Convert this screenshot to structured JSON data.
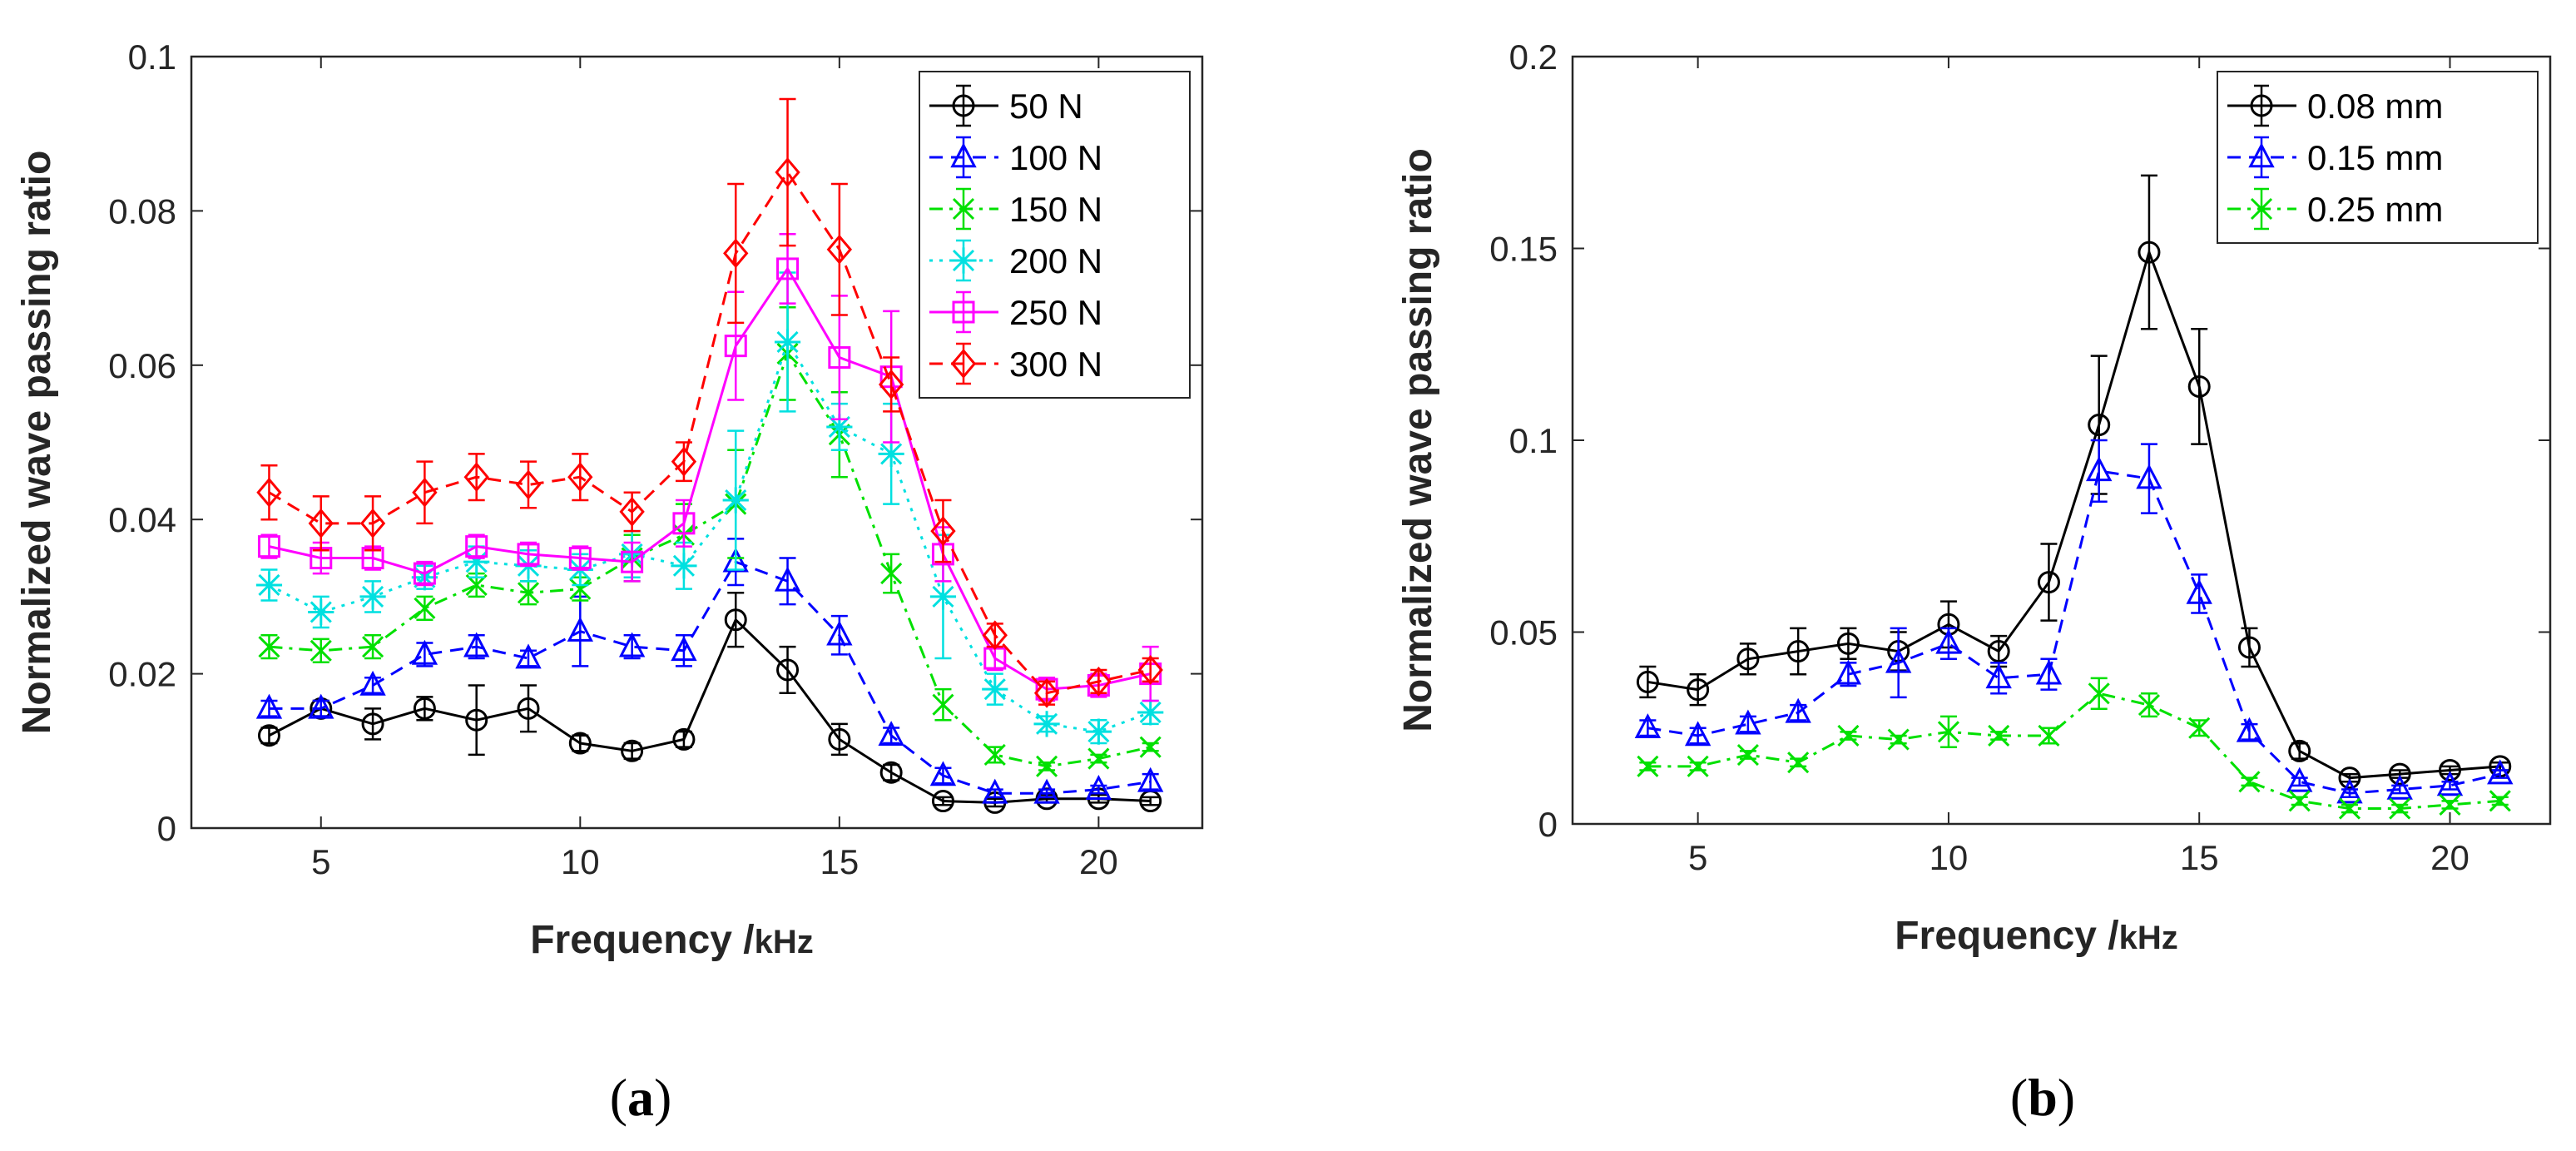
{
  "chart_data": [
    {
      "type": "line",
      "panel_label": "a",
      "xlabel": "Frequency /",
      "xlabel_unit": "kHz",
      "ylabel": "Normalized wave passing ratio",
      "xlim": [
        2.5,
        22
      ],
      "ylim": [
        0,
        0.1
      ],
      "xticks": [
        5,
        10,
        15,
        20
      ],
      "yticks": [
        0,
        0.02,
        0.04,
        0.06,
        0.08,
        0.1
      ],
      "ytick_labels": [
        "0",
        "0.02",
        "0.04",
        "0.06",
        "0.08",
        "0.1"
      ],
      "grid": false,
      "legend_position": "top-right",
      "x": [
        4,
        5,
        6,
        7,
        8,
        9,
        10,
        11,
        12,
        13,
        14,
        15,
        16,
        17,
        18,
        19,
        20,
        21
      ],
      "series": [
        {
          "name": "50 N",
          "color": "#000000",
          "marker": "circle",
          "dash": "solid",
          "values": [
            0.012,
            0.0155,
            0.0135,
            0.0155,
            0.014,
            0.0155,
            0.011,
            0.01,
            0.0115,
            0.027,
            0.0205,
            0.0115,
            0.0072,
            0.0035,
            0.0033,
            0.0038,
            0.0038,
            0.0035
          ],
          "errors": [
            0.001,
            0.001,
            0.002,
            0.0015,
            0.0045,
            0.003,
            0.001,
            0.001,
            0.001,
            0.0035,
            0.003,
            0.002,
            0.001,
            0.0005,
            0.0005,
            0.0005,
            0.0005,
            0.0005
          ]
        },
        {
          "name": "100 N",
          "color": "#0000ff",
          "marker": "triangle",
          "dash": "dashed",
          "values": [
            0.0155,
            0.0155,
            0.0185,
            0.0225,
            0.0235,
            0.022,
            0.0255,
            0.0235,
            0.023,
            0.0345,
            0.032,
            0.025,
            0.012,
            0.0068,
            0.0045,
            0.0045,
            0.005,
            0.006
          ],
          "errors": [
            0.001,
            0.001,
            0.001,
            0.0015,
            0.0015,
            0.001,
            0.0045,
            0.0015,
            0.002,
            0.003,
            0.003,
            0.0025,
            0.001,
            0.001,
            0.0005,
            0.0005,
            0.0005,
            0.001
          ]
        },
        {
          "name": "150 N",
          "color": "#00e000",
          "marker": "x",
          "dash": "dashdot",
          "values": [
            0.0235,
            0.023,
            0.0235,
            0.0285,
            0.0315,
            0.0305,
            0.031,
            0.035,
            0.038,
            0.042,
            0.0615,
            0.051,
            0.033,
            0.016,
            0.0095,
            0.008,
            0.009,
            0.0105
          ],
          "errors": [
            0.0015,
            0.0015,
            0.0015,
            0.0015,
            0.0015,
            0.0015,
            0.0015,
            0.003,
            0.004,
            0.007,
            0.006,
            0.0055,
            0.0025,
            0.002,
            0.001,
            0.0005,
            0.0005,
            0.0005
          ]
        },
        {
          "name": "200 N",
          "color": "#00e0e0",
          "marker": "star",
          "dash": "dotted",
          "values": [
            0.0315,
            0.028,
            0.03,
            0.0325,
            0.0345,
            0.034,
            0.0335,
            0.0355,
            0.034,
            0.0425,
            0.063,
            0.052,
            0.0485,
            0.03,
            0.018,
            0.0135,
            0.0125,
            0.015
          ],
          "errors": [
            0.002,
            0.002,
            0.002,
            0.0015,
            0.002,
            0.002,
            0.002,
            0.003,
            0.003,
            0.009,
            0.009,
            0.003,
            0.0065,
            0.008,
            0.002,
            0.001,
            0.0015,
            0.0015
          ]
        },
        {
          "name": "250 N",
          "color": "#ff00ff",
          "marker": "square",
          "dash": "solid",
          "values": [
            0.0365,
            0.035,
            0.035,
            0.033,
            0.0365,
            0.0355,
            0.035,
            0.0345,
            0.0395,
            0.0625,
            0.0725,
            0.061,
            0.0585,
            0.0355,
            0.022,
            0.018,
            0.0185,
            0.02
          ],
          "errors": [
            0.0015,
            0.002,
            0.0015,
            0.0015,
            0.0015,
            0.0015,
            0.0015,
            0.0025,
            0.003,
            0.007,
            0.0045,
            0.008,
            0.0085,
            0.0035,
            0.0015,
            0.0015,
            0.0015,
            0.0035
          ]
        },
        {
          "name": "300 N",
          "color": "#ff0000",
          "marker": "diamond",
          "dash": "dashed",
          "values": [
            0.0435,
            0.0395,
            0.0395,
            0.0435,
            0.0455,
            0.0445,
            0.0455,
            0.041,
            0.0475,
            0.0745,
            0.085,
            0.075,
            0.0575,
            0.0385,
            0.025,
            0.0175,
            0.019,
            0.0205
          ],
          "errors": [
            0.0035,
            0.0035,
            0.0035,
            0.004,
            0.003,
            0.003,
            0.003,
            0.0025,
            0.0025,
            0.009,
            0.0095,
            0.0085,
            0.0035,
            0.004,
            0.0015,
            0.0015,
            0.0015,
            0.0015
          ]
        }
      ]
    },
    {
      "type": "line",
      "panel_label": "b",
      "xlabel": "Frequency /",
      "xlabel_unit": "kHz",
      "ylabel": "Normalized wave passing ratio",
      "xlim": [
        2.5,
        22
      ],
      "ylim": [
        0,
        0.2
      ],
      "xticks": [
        5,
        10,
        15,
        20
      ],
      "yticks": [
        0,
        0.05,
        0.1,
        0.15,
        0.2
      ],
      "ytick_labels": [
        "0",
        "0.05",
        "0.1",
        "0.15",
        "0.2"
      ],
      "grid": false,
      "legend_position": "top-right",
      "x": [
        4,
        5,
        6,
        7,
        8,
        9,
        10,
        11,
        12,
        13,
        14,
        15,
        16,
        17,
        18,
        19,
        20,
        21
      ],
      "series": [
        {
          "name": "0.08 mm",
          "color": "#000000",
          "marker": "circle",
          "dash": "solid",
          "values": [
            0.037,
            0.035,
            0.043,
            0.045,
            0.047,
            0.045,
            0.052,
            0.045,
            0.063,
            0.104,
            0.149,
            0.114,
            0.046,
            0.019,
            0.012,
            0.013,
            0.014,
            0.015
          ],
          "errors": [
            0.004,
            0.004,
            0.004,
            0.006,
            0.004,
            0.005,
            0.006,
            0.004,
            0.01,
            0.018,
            0.02,
            0.015,
            0.005,
            0.002,
            0.001,
            0.001,
            0.001,
            0.001
          ]
        },
        {
          "name": "0.15 mm",
          "color": "#0000ff",
          "marker": "triangle",
          "dash": "dashed",
          "values": [
            0.025,
            0.023,
            0.026,
            0.029,
            0.039,
            0.042,
            0.047,
            0.038,
            0.039,
            0.092,
            0.09,
            0.06,
            0.024,
            0.011,
            0.008,
            0.009,
            0.01,
            0.013
          ],
          "errors": [
            0.002,
            0.002,
            0.002,
            0.002,
            0.003,
            0.009,
            0.004,
            0.004,
            0.004,
            0.008,
            0.009,
            0.005,
            0.002,
            0.001,
            0.001,
            0.001,
            0.001,
            0.001
          ]
        },
        {
          "name": "0.25 mm",
          "color": "#00e000",
          "marker": "x",
          "dash": "dashdot",
          "values": [
            0.015,
            0.015,
            0.018,
            0.016,
            0.023,
            0.022,
            0.024,
            0.023,
            0.023,
            0.034,
            0.031,
            0.025,
            0.011,
            0.006,
            0.004,
            0.004,
            0.005,
            0.006
          ],
          "errors": [
            0.001,
            0.001,
            0.001,
            0.001,
            0.001,
            0.001,
            0.004,
            0.001,
            0.002,
            0.004,
            0.003,
            0.002,
            0.001,
            0.001,
            0.001,
            0.001,
            0.001,
            0.001
          ]
        }
      ]
    }
  ]
}
